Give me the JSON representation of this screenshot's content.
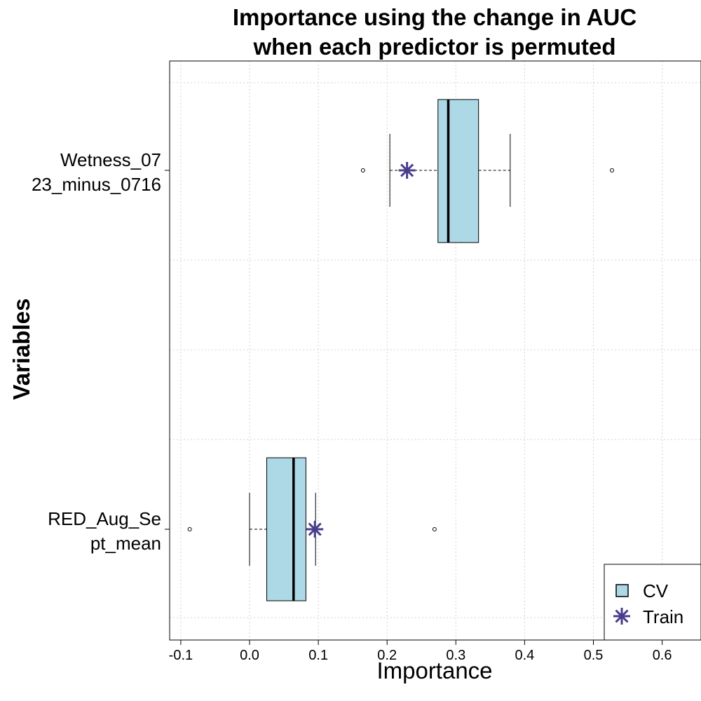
{
  "chart_data": {
    "type": "boxplot",
    "title_line1": "Importance using the change in AUC",
    "title_line2": "when each predictor is permuted",
    "xlabel": "Importance",
    "ylabel": "Variables",
    "xlim": [
      -0.12,
      0.66
    ],
    "xticks": [
      -0.1,
      0.0,
      0.1,
      0.2,
      0.3,
      0.4,
      0.5,
      0.6
    ],
    "xtick_labels": [
      "-0.1",
      "0.0",
      "0.1",
      "0.2",
      "0.3",
      "0.4",
      "0.5",
      "0.6"
    ],
    "grid": true,
    "legend": {
      "position": "bottom-right",
      "entries": [
        {
          "label": "CV",
          "symbol": "box"
        },
        {
          "label": "Train",
          "symbol": "asterisk"
        }
      ]
    },
    "colors": {
      "box_fill": "#add8e6",
      "train_marker": "#483d8b",
      "grid": "#d3d3d3"
    },
    "variables": [
      {
        "label_line1": "Wetness_07",
        "label_line2": "23_minus_0716",
        "cv": {
          "whisker_low": 0.204,
          "q1": 0.274,
          "median": 0.289,
          "q3": 0.333,
          "whisker_high": 0.379,
          "outliers": [
            0.165,
            0.527
          ]
        },
        "train": 0.229
      },
      {
        "label_line1": "RED_Aug_Se",
        "label_line2": "pt_mean",
        "cv": {
          "whisker_low": 0.0,
          "q1": 0.025,
          "median": 0.064,
          "q3": 0.082,
          "whisker_high": 0.096,
          "outliers": [
            -0.087,
            0.269
          ]
        },
        "train": 0.095
      }
    ]
  }
}
